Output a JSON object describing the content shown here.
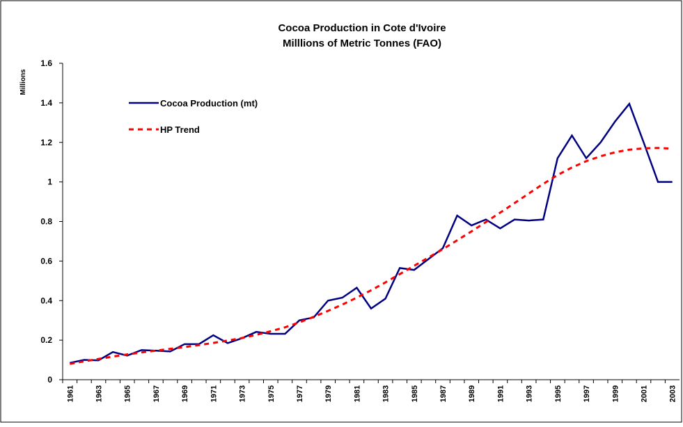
{
  "chart_data": {
    "type": "line",
    "title": "Cocoa Production in Cote d'Ivoire",
    "subtitle": "Milllions of Metric Tonnes  (FAO)",
    "y_label": "Millions",
    "categories": [
      "1961",
      null,
      "1963",
      null,
      "1965",
      null,
      "1967",
      null,
      "1969",
      null,
      "1971",
      null,
      "1973",
      null,
      "1975",
      null,
      "1977",
      null,
      "1979",
      null,
      "1981",
      null,
      "1983",
      null,
      "1985",
      null,
      "1987",
      null,
      "1989",
      null,
      "1991",
      null,
      "1993",
      null,
      "1995",
      null,
      "1997",
      null,
      "1999",
      null,
      "2001",
      null,
      "2003"
    ],
    "series": [
      {
        "name": "Cocoa Production (mt)",
        "color": "#000080",
        "dash": false,
        "values": [
          0.085,
          0.1,
          0.098,
          0.14,
          0.122,
          0.15,
          0.147,
          0.143,
          0.18,
          0.18,
          0.225,
          0.185,
          0.21,
          0.242,
          0.232,
          0.232,
          0.3,
          0.315,
          0.4,
          0.415,
          0.465,
          0.36,
          0.41,
          0.565,
          0.555,
          0.61,
          0.665,
          0.83,
          0.78,
          0.81,
          0.765,
          0.81,
          0.805,
          0.81,
          1.12,
          1.235,
          1.12,
          1.2,
          1.305,
          1.395,
          1.2,
          1.0,
          1.0
        ]
      },
      {
        "name": "HP Trend",
        "color": "#ff0000",
        "dash": true,
        "values": [
          0.08,
          0.093,
          0.105,
          0.117,
          0.128,
          0.138,
          0.147,
          0.156,
          0.165,
          0.175,
          0.186,
          0.198,
          0.211,
          0.227,
          0.245,
          0.265,
          0.29,
          0.318,
          0.348,
          0.38,
          0.415,
          0.452,
          0.492,
          0.534,
          0.576,
          0.618,
          0.66,
          0.705,
          0.75,
          0.797,
          0.845,
          0.893,
          0.942,
          0.99,
          1.035,
          1.073,
          1.105,
          1.13,
          1.15,
          1.163,
          1.17,
          1.172,
          1.168
        ]
      }
    ],
    "ylim": [
      0,
      1.6
    ],
    "yticks": [
      0,
      0.2,
      0.4,
      0.6,
      0.8,
      1,
      1.2,
      1.4,
      1.6
    ],
    "grid": false
  }
}
